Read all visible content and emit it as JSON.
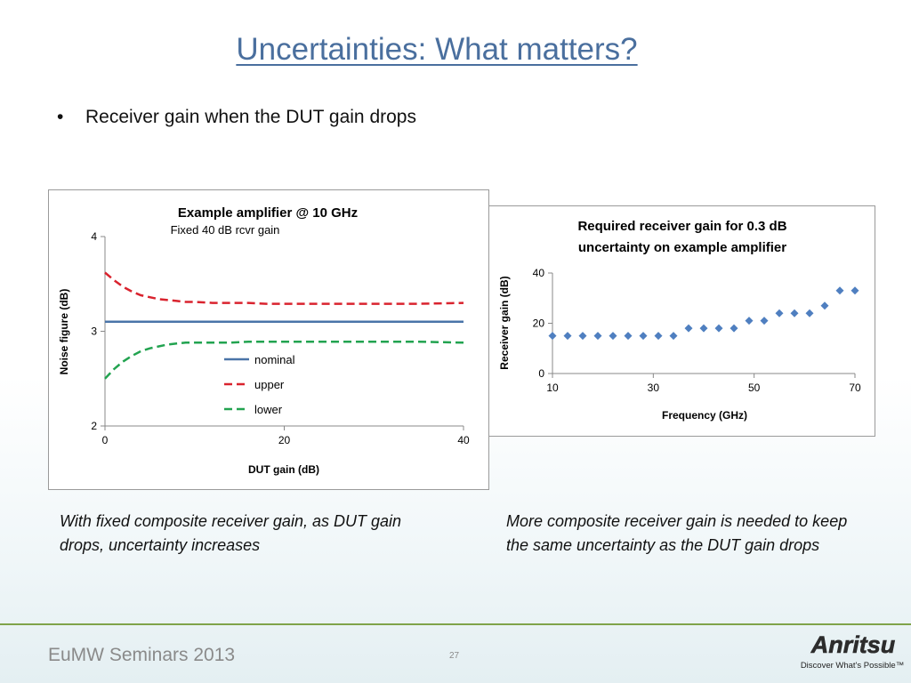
{
  "slide": {
    "title": "Uncertainties: What matters?",
    "bullet": "Receiver gain when the DUT gain drops",
    "caption_left": "With fixed composite receiver gain, as DUT gain drops, uncertainty increases",
    "caption_right": "More composite receiver gain is needed to keep the same uncertainty as the DUT gain drops",
    "footer": "EuMW Seminars 2013",
    "page_number": "27",
    "logo_text": "Anritsu",
    "logo_tagline": "Discover What's Possible™"
  },
  "chart_data": [
    {
      "type": "line",
      "title": "Example amplifier @ 10 GHz",
      "subtitle": "Fixed 40 dB rcvr gain",
      "xlabel": "DUT gain (dB)",
      "ylabel": "Noise figure (dB)",
      "xlim": [
        0,
        40
      ],
      "ylim": [
        2,
        4
      ],
      "xticks": [
        "0",
        "20",
        "40"
      ],
      "yticks": [
        "2",
        "3",
        "4"
      ],
      "grid": false,
      "legend": "center",
      "x": [
        0,
        1,
        2,
        3,
        4,
        5,
        6,
        7,
        8,
        9,
        10,
        12,
        14,
        16,
        18,
        20,
        25,
        30,
        35,
        40
      ],
      "series": [
        {
          "name": "nominal",
          "color": "#4a74a8",
          "dash": "solid",
          "values": [
            3.1,
            3.1,
            3.1,
            3.1,
            3.1,
            3.1,
            3.1,
            3.1,
            3.1,
            3.1,
            3.1,
            3.1,
            3.1,
            3.1,
            3.1,
            3.1,
            3.1,
            3.1,
            3.1,
            3.1
          ]
        },
        {
          "name": "upper",
          "color": "#d9232e",
          "dash": "dashed",
          "values": [
            3.62,
            3.54,
            3.47,
            3.42,
            3.38,
            3.36,
            3.34,
            3.33,
            3.32,
            3.31,
            3.31,
            3.3,
            3.3,
            3.3,
            3.29,
            3.29,
            3.29,
            3.29,
            3.29,
            3.3
          ]
        },
        {
          "name": "lower",
          "color": "#22a350",
          "dash": "dashed",
          "values": [
            2.5,
            2.6,
            2.68,
            2.74,
            2.79,
            2.82,
            2.84,
            2.86,
            2.87,
            2.88,
            2.88,
            2.88,
            2.88,
            2.89,
            2.89,
            2.89,
            2.89,
            2.89,
            2.89,
            2.88
          ]
        }
      ]
    },
    {
      "type": "scatter",
      "title": "Required receiver gain for 0.3 dB uncertainty on example amplifier",
      "title_lines": [
        "Required receiver gain for 0.3 dB",
        "uncertainty on example amplifier"
      ],
      "xlabel": "Frequency (GHz)",
      "ylabel": "Receiver gain (dB)",
      "xlim": [
        10,
        70
      ],
      "ylim": [
        0,
        40
      ],
      "xticks": [
        "10",
        "30",
        "50",
        "70"
      ],
      "yticks": [
        "0",
        "20",
        "40"
      ],
      "grid": false,
      "marker_color": "#4f7fc0",
      "series": [
        {
          "x": [
            10,
            13,
            16,
            19,
            22,
            25,
            28,
            31,
            34,
            37,
            40,
            43,
            46,
            49,
            52,
            55,
            58,
            61,
            64,
            67,
            70
          ],
          "values": [
            15,
            15,
            15,
            15,
            15,
            15,
            15,
            15,
            15,
            18,
            18,
            18,
            18,
            21,
            21,
            24,
            24,
            24,
            27,
            33,
            33
          ]
        }
      ]
    }
  ]
}
